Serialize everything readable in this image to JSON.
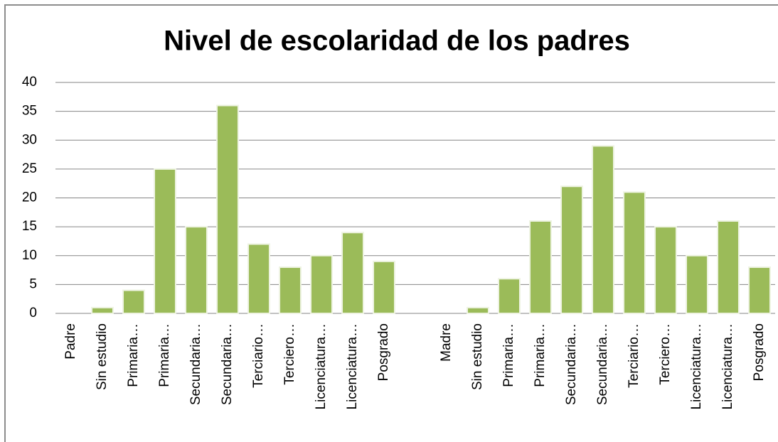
{
  "chart_data": {
    "type": "bar",
    "title": "Nivel de escolaridad de los padres",
    "categories": [
      "Padre",
      "Sin estudio",
      "Primaria…",
      "Primaria…",
      "Secundaria…",
      "Secundaria…",
      "Terciario…",
      "Terciero…",
      "Licenciatura…",
      "Licenciatura…",
      "Posgrado",
      null,
      "Madre",
      "Sin estudio",
      "Primaria…",
      "Primaria…",
      "Secundaria…",
      "Secundaria…",
      "Terciario…",
      "Terciero…",
      "Licenciatura…",
      "Licenciatura…",
      "Posgrado"
    ],
    "values": [
      null,
      1,
      4,
      25,
      15,
      36,
      12,
      8,
      10,
      14,
      9,
      null,
      null,
      1,
      6,
      16,
      22,
      29,
      21,
      15,
      10,
      16,
      8
    ],
    "color": "#9bbb59",
    "ylim": [
      0,
      40
    ],
    "yticks": [
      0,
      5,
      10,
      15,
      20,
      25,
      30,
      35,
      40
    ],
    "grid": true
  }
}
